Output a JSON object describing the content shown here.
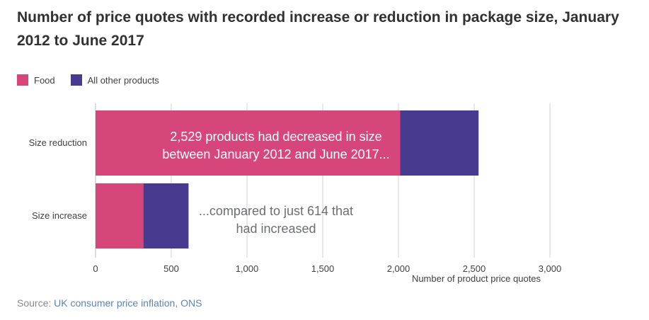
{
  "title": "Number of price quotes with recorded increase or reduction in package size, January 2012 to June 2017",
  "legend": [
    {
      "label": "Food",
      "color": "#d6467b"
    },
    {
      "label": "All other products",
      "color": "#483a8f"
    }
  ],
  "source": {
    "prefix": "Source: ",
    "link_text": "UK consumer price inflation, ONS"
  },
  "chart_data": {
    "type": "bar",
    "orientation": "horizontal",
    "stacked": true,
    "categories": [
      "Size reduction",
      "Size increase"
    ],
    "series": [
      {
        "name": "Food",
        "values": [
          2010,
          316
        ],
        "color": "#d6467b"
      },
      {
        "name": "All other products",
        "values": [
          519,
          298
        ],
        "color": "#483a8f"
      }
    ],
    "xlabel": "Number of product price quotes",
    "xlim": [
      0,
      3000
    ],
    "xticks": [
      0,
      500,
      1000,
      1500,
      2000,
      2500,
      3000
    ],
    "xtick_labels": [
      "0",
      "500",
      "1,000",
      "1,500",
      "2,000",
      "2,500",
      "3,000"
    ],
    "grid": true,
    "annotations": [
      {
        "category": "Size reduction",
        "lines": [
          "2,529 products had decreased in size",
          "between January 2012 and June 2017..."
        ]
      },
      {
        "category": "Size increase",
        "lines": [
          "...compared to just 614 that",
          "had increased"
        ]
      }
    ]
  }
}
